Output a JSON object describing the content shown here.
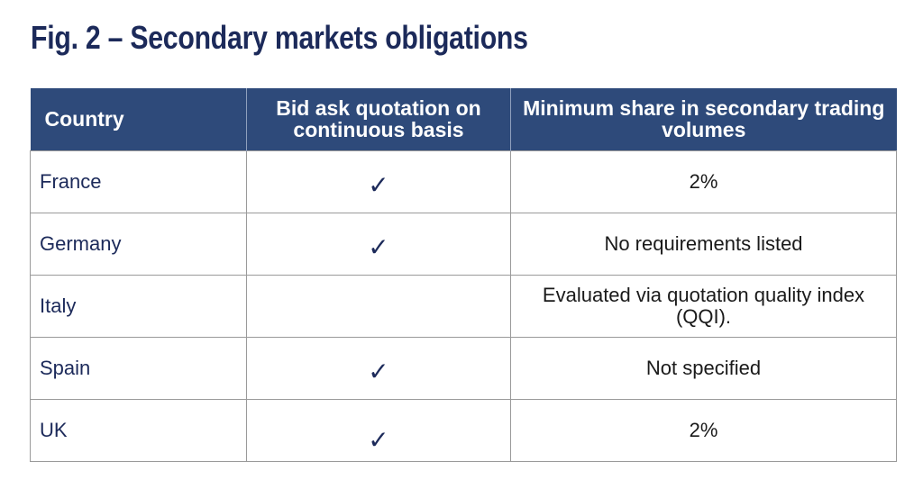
{
  "title": "Fig. 2 – Secondary markets obligations",
  "table": {
    "headers": {
      "country": "Country",
      "bid_ask": "Bid ask quotation on continuous basis",
      "minimum_share": "Minimum share in secondary trading volumes"
    },
    "check_glyph": "✓",
    "check_icon": "checkmark-icon",
    "rows": [
      {
        "country": "France",
        "bid_ask_check": true,
        "minimum_share": "2%"
      },
      {
        "country": "Germany",
        "bid_ask_check": true,
        "minimum_share": "No requirements listed"
      },
      {
        "country": "Italy",
        "bid_ask_check": false,
        "minimum_share": "Evaluated via quotation quality index (QQI)."
      },
      {
        "country": "Spain",
        "bid_ask_check": true,
        "minimum_share": "Not specified"
      },
      {
        "country": "UK",
        "bid_ask_check": true,
        "minimum_share": "2%"
      }
    ]
  },
  "colors": {
    "title": "#1c2a5a",
    "header_background": "#2e4a7a",
    "header_text": "#ffffff",
    "country_text": "#1c2a5a",
    "check": "#1c2a5a",
    "border": "#9a9a9a"
  }
}
